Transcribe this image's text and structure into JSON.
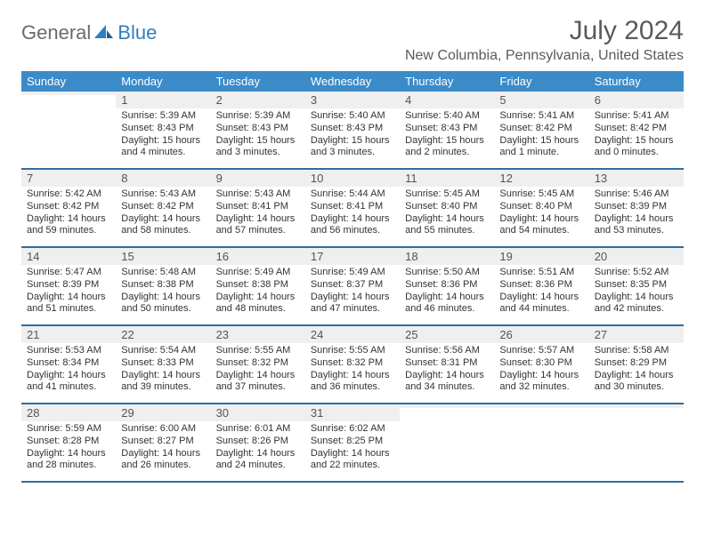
{
  "logo": {
    "word1": "General",
    "word2": "Blue"
  },
  "header": {
    "month_title": "July 2024",
    "location": "New Columbia, Pennsylvania, United States"
  },
  "colors": {
    "header_bar": "#3b8bc9",
    "week_divider": "#2f6da3",
    "shade_bg": "#efefef",
    "logo_gray": "#6b6b6b",
    "logo_blue": "#2f7fbf",
    "title_gray": "#5a5a5a"
  },
  "daynames": [
    "Sunday",
    "Monday",
    "Tuesday",
    "Wednesday",
    "Thursday",
    "Friday",
    "Saturday"
  ],
  "weeks": [
    [
      {
        "num": "",
        "sunrise": "",
        "sunset": "",
        "daylight1": "",
        "daylight2": ""
      },
      {
        "num": "1",
        "sunrise": "Sunrise: 5:39 AM",
        "sunset": "Sunset: 8:43 PM",
        "daylight1": "Daylight: 15 hours",
        "daylight2": "and 4 minutes."
      },
      {
        "num": "2",
        "sunrise": "Sunrise: 5:39 AM",
        "sunset": "Sunset: 8:43 PM",
        "daylight1": "Daylight: 15 hours",
        "daylight2": "and 3 minutes."
      },
      {
        "num": "3",
        "sunrise": "Sunrise: 5:40 AM",
        "sunset": "Sunset: 8:43 PM",
        "daylight1": "Daylight: 15 hours",
        "daylight2": "and 3 minutes."
      },
      {
        "num": "4",
        "sunrise": "Sunrise: 5:40 AM",
        "sunset": "Sunset: 8:43 PM",
        "daylight1": "Daylight: 15 hours",
        "daylight2": "and 2 minutes."
      },
      {
        "num": "5",
        "sunrise": "Sunrise: 5:41 AM",
        "sunset": "Sunset: 8:42 PM",
        "daylight1": "Daylight: 15 hours",
        "daylight2": "and 1 minute."
      },
      {
        "num": "6",
        "sunrise": "Sunrise: 5:41 AM",
        "sunset": "Sunset: 8:42 PM",
        "daylight1": "Daylight: 15 hours",
        "daylight2": "and 0 minutes."
      }
    ],
    [
      {
        "num": "7",
        "sunrise": "Sunrise: 5:42 AM",
        "sunset": "Sunset: 8:42 PM",
        "daylight1": "Daylight: 14 hours",
        "daylight2": "and 59 minutes."
      },
      {
        "num": "8",
        "sunrise": "Sunrise: 5:43 AM",
        "sunset": "Sunset: 8:42 PM",
        "daylight1": "Daylight: 14 hours",
        "daylight2": "and 58 minutes."
      },
      {
        "num": "9",
        "sunrise": "Sunrise: 5:43 AM",
        "sunset": "Sunset: 8:41 PM",
        "daylight1": "Daylight: 14 hours",
        "daylight2": "and 57 minutes."
      },
      {
        "num": "10",
        "sunrise": "Sunrise: 5:44 AM",
        "sunset": "Sunset: 8:41 PM",
        "daylight1": "Daylight: 14 hours",
        "daylight2": "and 56 minutes."
      },
      {
        "num": "11",
        "sunrise": "Sunrise: 5:45 AM",
        "sunset": "Sunset: 8:40 PM",
        "daylight1": "Daylight: 14 hours",
        "daylight2": "and 55 minutes."
      },
      {
        "num": "12",
        "sunrise": "Sunrise: 5:45 AM",
        "sunset": "Sunset: 8:40 PM",
        "daylight1": "Daylight: 14 hours",
        "daylight2": "and 54 minutes."
      },
      {
        "num": "13",
        "sunrise": "Sunrise: 5:46 AM",
        "sunset": "Sunset: 8:39 PM",
        "daylight1": "Daylight: 14 hours",
        "daylight2": "and 53 minutes."
      }
    ],
    [
      {
        "num": "14",
        "sunrise": "Sunrise: 5:47 AM",
        "sunset": "Sunset: 8:39 PM",
        "daylight1": "Daylight: 14 hours",
        "daylight2": "and 51 minutes."
      },
      {
        "num": "15",
        "sunrise": "Sunrise: 5:48 AM",
        "sunset": "Sunset: 8:38 PM",
        "daylight1": "Daylight: 14 hours",
        "daylight2": "and 50 minutes."
      },
      {
        "num": "16",
        "sunrise": "Sunrise: 5:49 AM",
        "sunset": "Sunset: 8:38 PM",
        "daylight1": "Daylight: 14 hours",
        "daylight2": "and 48 minutes."
      },
      {
        "num": "17",
        "sunrise": "Sunrise: 5:49 AM",
        "sunset": "Sunset: 8:37 PM",
        "daylight1": "Daylight: 14 hours",
        "daylight2": "and 47 minutes."
      },
      {
        "num": "18",
        "sunrise": "Sunrise: 5:50 AM",
        "sunset": "Sunset: 8:36 PM",
        "daylight1": "Daylight: 14 hours",
        "daylight2": "and 46 minutes."
      },
      {
        "num": "19",
        "sunrise": "Sunrise: 5:51 AM",
        "sunset": "Sunset: 8:36 PM",
        "daylight1": "Daylight: 14 hours",
        "daylight2": "and 44 minutes."
      },
      {
        "num": "20",
        "sunrise": "Sunrise: 5:52 AM",
        "sunset": "Sunset: 8:35 PM",
        "daylight1": "Daylight: 14 hours",
        "daylight2": "and 42 minutes."
      }
    ],
    [
      {
        "num": "21",
        "sunrise": "Sunrise: 5:53 AM",
        "sunset": "Sunset: 8:34 PM",
        "daylight1": "Daylight: 14 hours",
        "daylight2": "and 41 minutes."
      },
      {
        "num": "22",
        "sunrise": "Sunrise: 5:54 AM",
        "sunset": "Sunset: 8:33 PM",
        "daylight1": "Daylight: 14 hours",
        "daylight2": "and 39 minutes."
      },
      {
        "num": "23",
        "sunrise": "Sunrise: 5:55 AM",
        "sunset": "Sunset: 8:32 PM",
        "daylight1": "Daylight: 14 hours",
        "daylight2": "and 37 minutes."
      },
      {
        "num": "24",
        "sunrise": "Sunrise: 5:55 AM",
        "sunset": "Sunset: 8:32 PM",
        "daylight1": "Daylight: 14 hours",
        "daylight2": "and 36 minutes."
      },
      {
        "num": "25",
        "sunrise": "Sunrise: 5:56 AM",
        "sunset": "Sunset: 8:31 PM",
        "daylight1": "Daylight: 14 hours",
        "daylight2": "and 34 minutes."
      },
      {
        "num": "26",
        "sunrise": "Sunrise: 5:57 AM",
        "sunset": "Sunset: 8:30 PM",
        "daylight1": "Daylight: 14 hours",
        "daylight2": "and 32 minutes."
      },
      {
        "num": "27",
        "sunrise": "Sunrise: 5:58 AM",
        "sunset": "Sunset: 8:29 PM",
        "daylight1": "Daylight: 14 hours",
        "daylight2": "and 30 minutes."
      }
    ],
    [
      {
        "num": "28",
        "sunrise": "Sunrise: 5:59 AM",
        "sunset": "Sunset: 8:28 PM",
        "daylight1": "Daylight: 14 hours",
        "daylight2": "and 28 minutes."
      },
      {
        "num": "29",
        "sunrise": "Sunrise: 6:00 AM",
        "sunset": "Sunset: 8:27 PM",
        "daylight1": "Daylight: 14 hours",
        "daylight2": "and 26 minutes."
      },
      {
        "num": "30",
        "sunrise": "Sunrise: 6:01 AM",
        "sunset": "Sunset: 8:26 PM",
        "daylight1": "Daylight: 14 hours",
        "daylight2": "and 24 minutes."
      },
      {
        "num": "31",
        "sunrise": "Sunrise: 6:02 AM",
        "sunset": "Sunset: 8:25 PM",
        "daylight1": "Daylight: 14 hours",
        "daylight2": "and 22 minutes."
      },
      {
        "num": "",
        "sunrise": "",
        "sunset": "",
        "daylight1": "",
        "daylight2": ""
      },
      {
        "num": "",
        "sunrise": "",
        "sunset": "",
        "daylight1": "",
        "daylight2": ""
      },
      {
        "num": "",
        "sunrise": "",
        "sunset": "",
        "daylight1": "",
        "daylight2": ""
      }
    ]
  ]
}
